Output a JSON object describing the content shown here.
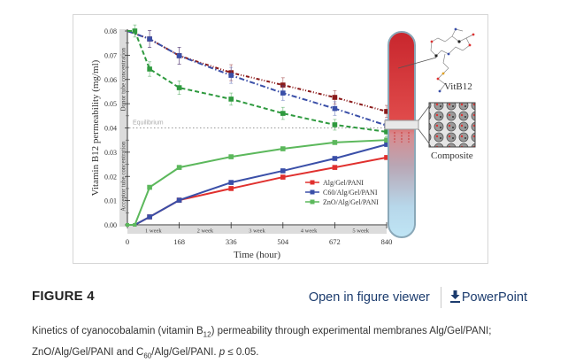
{
  "figure": {
    "label": "FIGURE 4",
    "actions": {
      "open_viewer": "Open in figure viewer",
      "powerpoint": "PowerPoint"
    },
    "caption": {
      "part1": "Kinetics of cyanocobalamin (vitamin B",
      "sub1": "12",
      "part2": ") permeability through experimental membranes Alg/Gel/PANI;",
      "part3": "ZnO/Alg/Gel/PANI and C",
      "sub2": "60",
      "part4": "/Alg/Gel/PANI. ",
      "p_symbol": "p",
      "part5": " ≤ 0.05."
    },
    "diagram": {
      "molecule_label": "VitB12",
      "composite_label": "Composite"
    }
  },
  "colors": {
    "red_series": "#e0302e",
    "darkred_series": "#8b1a1a",
    "blue_series": "#3a4fa8",
    "green_series": "#5cb85c",
    "darkgreen_series": "#2f9a3f",
    "link": "#1c3c6e"
  },
  "chart_data": {
    "type": "line",
    "title": "",
    "xlabel": "Time (hour)",
    "ylabel": "Vitamin B12 permeability (mg/ml)",
    "xlim": [
      0,
      840
    ],
    "ylim": [
      0,
      0.08
    ],
    "x_ticks": [
      0,
      168,
      336,
      504,
      672,
      840
    ],
    "y_ticks": [
      0.0,
      0.01,
      0.02,
      0.03,
      0.04,
      0.05,
      0.06,
      0.07,
      0.08
    ],
    "y_tick_labels": [
      "0.00",
      "0.01",
      "0.02",
      "0.03",
      "0.04",
      "0.05",
      "0.06",
      "0.07",
      "0.08"
    ],
    "week_labels": [
      "1 week",
      "2 week",
      "3 week",
      "4 week",
      "5 week"
    ],
    "band_labels": {
      "donor": "Donor tube concentration",
      "acceptor": "Acceptor tube concentration"
    },
    "equilibrium": {
      "value": 0.04,
      "label": "Equilibrium"
    },
    "legend": {
      "placement": "bottom-right"
    },
    "series": [
      {
        "name": "Alg/Gel/PANI",
        "group": "acceptor",
        "color_key": "red_series",
        "x": [
          0,
          24,
          72,
          168,
          336,
          504,
          672,
          840
        ],
        "values": [
          0.0,
          0.0,
          0.0033,
          0.0102,
          0.015,
          0.0197,
          0.0237,
          0.0278
        ]
      },
      {
        "name": "C60/Alg/Gel/PANI",
        "group": "acceptor",
        "color_key": "blue_series",
        "x": [
          0,
          24,
          72,
          168,
          336,
          504,
          672,
          840
        ],
        "values": [
          0.0,
          0.0,
          0.0033,
          0.0102,
          0.0175,
          0.0223,
          0.0274,
          0.0332
        ]
      },
      {
        "name": "ZnO/Alg/Gel/PANI",
        "group": "acceptor",
        "color_key": "green_series",
        "x": [
          0,
          24,
          72,
          168,
          336,
          504,
          672,
          840
        ],
        "values": [
          0.0,
          0.0,
          0.0155,
          0.0237,
          0.0281,
          0.0314,
          0.034,
          0.035
        ]
      },
      {
        "name": "Alg/Gel/PANI (donor)",
        "group": "donor",
        "color_key": "darkred_series",
        "x": [
          0,
          72,
          168,
          336,
          504,
          672,
          840
        ],
        "values": [
          0.08,
          0.0767,
          0.0698,
          0.0628,
          0.0577,
          0.0526,
          0.0468
        ],
        "errors": [
          0.0,
          0.0035,
          0.0035,
          0.0033,
          0.003,
          0.0028,
          0.0025
        ]
      },
      {
        "name": "C60/Alg/Gel/PANI (donor)",
        "group": "donor",
        "color_key": "blue_series",
        "x": [
          0,
          72,
          168,
          336,
          504,
          672,
          840
        ],
        "values": [
          0.08,
          0.0767,
          0.0698,
          0.0617,
          0.0544,
          0.048,
          0.041
        ],
        "errors": [
          0.0,
          0.0035,
          0.0035,
          0.0033,
          0.003,
          0.0028,
          0.0025
        ]
      },
      {
        "name": "ZnO/Alg/Gel/PANI (donor)",
        "group": "donor",
        "color_key": "darkgreen_series",
        "x": [
          0,
          24,
          72,
          168,
          336,
          504,
          672,
          840
        ],
        "values": [
          0.08,
          0.08,
          0.0643,
          0.0566,
          0.0519,
          0.046,
          0.0413,
          0.0384
        ],
        "errors": [
          0.0,
          0.0025,
          0.003,
          0.0028,
          0.0025,
          0.0025,
          0.0022,
          0.002
        ]
      }
    ]
  }
}
